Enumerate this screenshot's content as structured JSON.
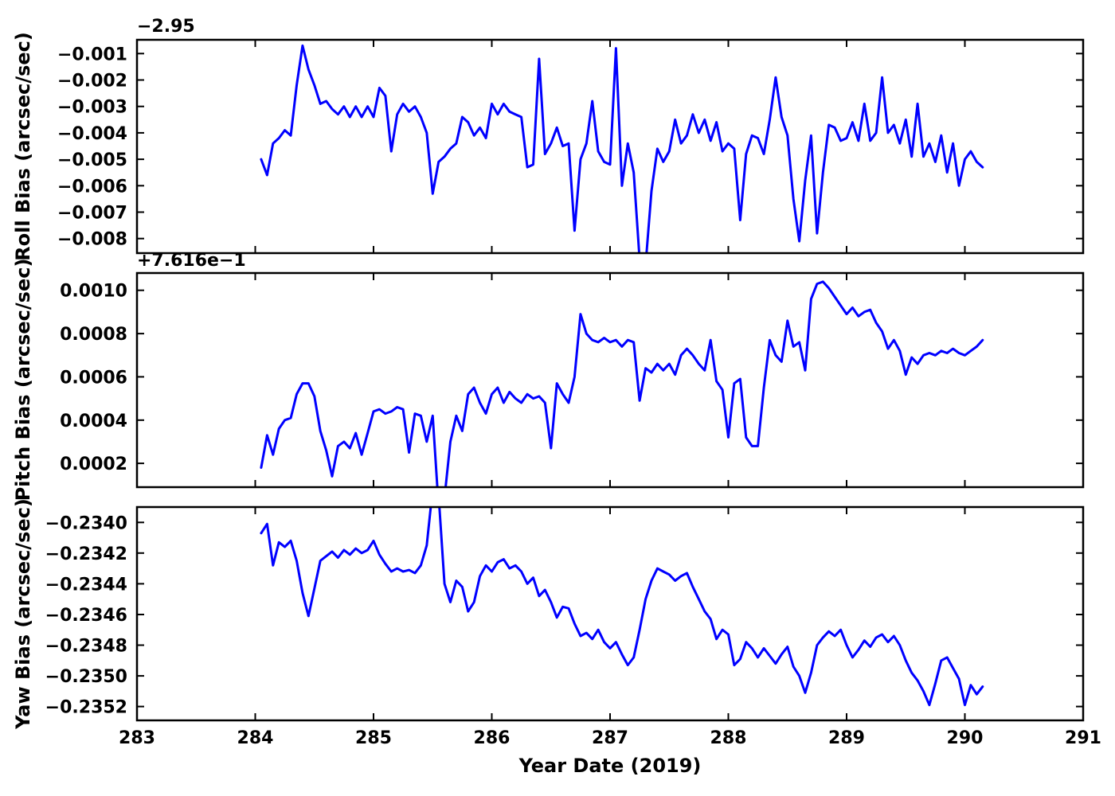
{
  "figure": {
    "background": "#ffffff",
    "line_color": "#0000ff",
    "line_width": 3,
    "frame_color": "#000000"
  },
  "chart_data": {
    "type": "line",
    "layout": "3 vertically stacked subplots sharing one x axis, grid off, no legend, blue solid lines",
    "x_axis": {
      "label": "Year Date (2019)",
      "lim": [
        283,
        291
      ],
      "tick_values": [
        283,
        284,
        285,
        286,
        287,
        288,
        289,
        290,
        291
      ],
      "tick_labels": [
        "283",
        "284",
        "285",
        "286",
        "287",
        "288",
        "289",
        "290",
        "291"
      ]
    },
    "x": [
      284.05,
      284.1,
      284.15,
      284.2,
      284.25,
      284.3,
      284.35,
      284.4,
      284.45,
      284.5,
      284.55,
      284.6,
      284.65,
      284.7,
      284.75,
      284.8,
      284.85,
      284.9,
      284.95,
      285.0,
      285.05,
      285.1,
      285.15,
      285.2,
      285.25,
      285.3,
      285.35,
      285.4,
      285.45,
      285.5,
      285.55,
      285.6,
      285.65,
      285.7,
      285.75,
      285.8,
      285.85,
      285.9,
      285.95,
      286.0,
      286.05,
      286.1,
      286.15,
      286.2,
      286.25,
      286.3,
      286.35,
      286.4,
      286.45,
      286.5,
      286.55,
      286.6,
      286.65,
      286.7,
      286.75,
      286.8,
      286.85,
      286.9,
      286.95,
      287.0,
      287.05,
      287.1,
      287.15,
      287.2,
      287.25,
      287.3,
      287.35,
      287.4,
      287.45,
      287.5,
      287.55,
      287.6,
      287.65,
      287.7,
      287.75,
      287.8,
      287.85,
      287.9,
      287.95,
      288.0,
      288.05,
      288.1,
      288.15,
      288.2,
      288.25,
      288.3,
      288.35,
      288.4,
      288.45,
      288.5,
      288.55,
      288.6,
      288.65,
      288.7,
      288.75,
      288.8,
      288.85,
      288.9,
      288.95,
      289.0,
      289.05,
      289.1,
      289.15,
      289.2,
      289.25,
      289.3,
      289.35,
      289.4,
      289.45,
      289.5,
      289.55,
      289.6,
      289.65,
      289.7,
      289.75,
      289.8,
      289.85,
      289.9,
      289.95,
      290.0,
      290.05,
      290.1,
      290.15
    ],
    "subplots": [
      {
        "name": "roll-bias",
        "ylabel": "Roll Bias (arcsec/sec)",
        "axis_offset_text": "−2.95",
        "axis_offset_value": -2.95,
        "ylim": [
          -0.00855,
          -0.00048
        ],
        "ytick_values": [
          -0.001,
          -0.002,
          -0.003,
          -0.004,
          -0.005,
          -0.006,
          -0.007,
          -0.008
        ],
        "ytick_labels": [
          "−0.001",
          "−0.002",
          "−0.003",
          "−0.004",
          "−0.005",
          "−0.006",
          "−0.007",
          "−0.008"
        ],
        "y": [
          -0.005,
          -0.0056,
          -0.0044,
          -0.0042,
          -0.0039,
          -0.0041,
          -0.0022,
          -0.0007,
          -0.0016,
          -0.0022,
          -0.0029,
          -0.0028,
          -0.0031,
          -0.0033,
          -0.003,
          -0.0034,
          -0.003,
          -0.0034,
          -0.003,
          -0.0034,
          -0.0023,
          -0.0026,
          -0.0047,
          -0.0033,
          -0.0029,
          -0.0032,
          -0.003,
          -0.0034,
          -0.004,
          -0.0063,
          -0.0051,
          -0.0049,
          -0.0046,
          -0.0044,
          -0.0034,
          -0.0036,
          -0.0041,
          -0.0038,
          -0.0042,
          -0.0029,
          -0.0033,
          -0.0029,
          -0.0032,
          -0.0033,
          -0.0034,
          -0.0053,
          -0.0052,
          -0.0012,
          -0.0048,
          -0.0044,
          -0.0038,
          -0.0045,
          -0.0044,
          -0.0077,
          -0.005,
          -0.0044,
          -0.0028,
          -0.0047,
          -0.0051,
          -0.0052,
          -0.0008,
          -0.006,
          -0.0044,
          -0.0055,
          -0.0088,
          -0.009,
          -0.0062,
          -0.0046,
          -0.0051,
          -0.0047,
          -0.0035,
          -0.0044,
          -0.0041,
          -0.0033,
          -0.004,
          -0.0035,
          -0.0043,
          -0.0036,
          -0.0047,
          -0.0044,
          -0.0046,
          -0.0073,
          -0.0048,
          -0.0041,
          -0.0042,
          -0.0048,
          -0.0035,
          -0.0019,
          -0.0034,
          -0.0041,
          -0.0065,
          -0.0081,
          -0.0058,
          -0.0041,
          -0.0078,
          -0.0055,
          -0.0037,
          -0.0038,
          -0.0043,
          -0.0042,
          -0.0036,
          -0.0043,
          -0.0029,
          -0.0043,
          -0.004,
          -0.0019,
          -0.004,
          -0.0037,
          -0.0044,
          -0.0035,
          -0.0049,
          -0.0029,
          -0.0049,
          -0.0044,
          -0.0051,
          -0.0041,
          -0.0055,
          -0.0044,
          -0.006,
          -0.005,
          -0.0047,
          -0.0051,
          -0.0053
        ]
      },
      {
        "name": "pitch-bias",
        "ylabel": "Pitch Bias (arcsec/sec)",
        "axis_offset_text": "+7.616e−1",
        "axis_offset_value": 0.7616,
        "ylim": [
          9e-05,
          0.00108
        ],
        "ytick_values": [
          0.001,
          0.0008,
          0.0006,
          0.0004,
          0.0002
        ],
        "ytick_labels": [
          "0.0010",
          "0.0008",
          "0.0006",
          "0.0004",
          "0.0002"
        ],
        "y": [
          0.00018,
          0.00033,
          0.00024,
          0.00036,
          0.0004,
          0.00041,
          0.00052,
          0.00057,
          0.00057,
          0.00051,
          0.00035,
          0.00026,
          0.00014,
          0.00028,
          0.0003,
          0.00027,
          0.00034,
          0.00024,
          0.00034,
          0.00044,
          0.00045,
          0.00043,
          0.00044,
          0.00046,
          0.00045,
          0.00025,
          0.00043,
          0.00042,
          0.0003,
          0.00042,
          0.0,
          4e-05,
          0.0003,
          0.00042,
          0.00035,
          0.00052,
          0.00055,
          0.00048,
          0.00043,
          0.00052,
          0.00055,
          0.00048,
          0.00053,
          0.0005,
          0.00048,
          0.00052,
          0.0005,
          0.00051,
          0.00048,
          0.00027,
          0.00057,
          0.00052,
          0.00048,
          0.0006,
          0.00089,
          0.0008,
          0.00077,
          0.00076,
          0.00078,
          0.00076,
          0.00077,
          0.00074,
          0.00077,
          0.00076,
          0.00049,
          0.00064,
          0.00062,
          0.00066,
          0.00063,
          0.00066,
          0.00061,
          0.0007,
          0.00073,
          0.0007,
          0.00066,
          0.00063,
          0.00077,
          0.00058,
          0.00054,
          0.00032,
          0.00057,
          0.00059,
          0.00032,
          0.00028,
          0.00028,
          0.00055,
          0.00077,
          0.0007,
          0.00067,
          0.00086,
          0.00074,
          0.00076,
          0.00063,
          0.00096,
          0.00103,
          0.00104,
          0.00101,
          0.00097,
          0.00093,
          0.00089,
          0.00092,
          0.00088,
          0.0009,
          0.00091,
          0.00085,
          0.00081,
          0.00073,
          0.00077,
          0.00072,
          0.00061,
          0.00069,
          0.00066,
          0.0007,
          0.00071,
          0.0007,
          0.00072,
          0.00071,
          0.00073,
          0.00071,
          0.0007,
          0.00072,
          0.00074,
          0.00077
        ]
      },
      {
        "name": "yaw-bias",
        "ylabel": "Yaw Bias (arcsec/sec)",
        "axis_offset_text": "",
        "axis_offset_value": 0,
        "ylim": [
          -0.23529,
          -0.2339
        ],
        "ytick_values": [
          -0.234,
          -0.2342,
          -0.2344,
          -0.2346,
          -0.2348,
          -0.235,
          -0.2352
        ],
        "ytick_labels": [
          "−0.2340",
          "−0.2342",
          "−0.2344",
          "−0.2346",
          "−0.2348",
          "−0.2350",
          "−0.2352"
        ],
        "y": [
          -0.23407,
          -0.23401,
          -0.23428,
          -0.23413,
          -0.23416,
          -0.23412,
          -0.23425,
          -0.23446,
          -0.23461,
          -0.23443,
          -0.23425,
          -0.23422,
          -0.23419,
          -0.23423,
          -0.23418,
          -0.23421,
          -0.23417,
          -0.2342,
          -0.23418,
          -0.23412,
          -0.23421,
          -0.23427,
          -0.23432,
          -0.2343,
          -0.23432,
          -0.23431,
          -0.23433,
          -0.23428,
          -0.23415,
          -0.23378,
          -0.23382,
          -0.2344,
          -0.23452,
          -0.23438,
          -0.23442,
          -0.23458,
          -0.23452,
          -0.23435,
          -0.23428,
          -0.23432,
          -0.23426,
          -0.23424,
          -0.2343,
          -0.23428,
          -0.23432,
          -0.2344,
          -0.23436,
          -0.23448,
          -0.23444,
          -0.23452,
          -0.23462,
          -0.23455,
          -0.23456,
          -0.23466,
          -0.23474,
          -0.23472,
          -0.23476,
          -0.2347,
          -0.23478,
          -0.23482,
          -0.23478,
          -0.23486,
          -0.23493,
          -0.23488,
          -0.2347,
          -0.2345,
          -0.23438,
          -0.2343,
          -0.23432,
          -0.23434,
          -0.23438,
          -0.23435,
          -0.23433,
          -0.23442,
          -0.2345,
          -0.23458,
          -0.23463,
          -0.23476,
          -0.2347,
          -0.23473,
          -0.23493,
          -0.23489,
          -0.23478,
          -0.23482,
          -0.23488,
          -0.23482,
          -0.23487,
          -0.23492,
          -0.23486,
          -0.23481,
          -0.23494,
          -0.235,
          -0.23511,
          -0.23498,
          -0.2348,
          -0.23475,
          -0.23471,
          -0.23474,
          -0.2347,
          -0.2348,
          -0.23488,
          -0.23483,
          -0.23477,
          -0.23481,
          -0.23475,
          -0.23473,
          -0.23478,
          -0.23474,
          -0.2348,
          -0.2349,
          -0.23498,
          -0.23503,
          -0.2351,
          -0.23519,
          -0.23505,
          -0.2349,
          -0.23488,
          -0.23495,
          -0.23502,
          -0.23519,
          -0.23506,
          -0.23512,
          -0.23507
        ]
      }
    ]
  }
}
